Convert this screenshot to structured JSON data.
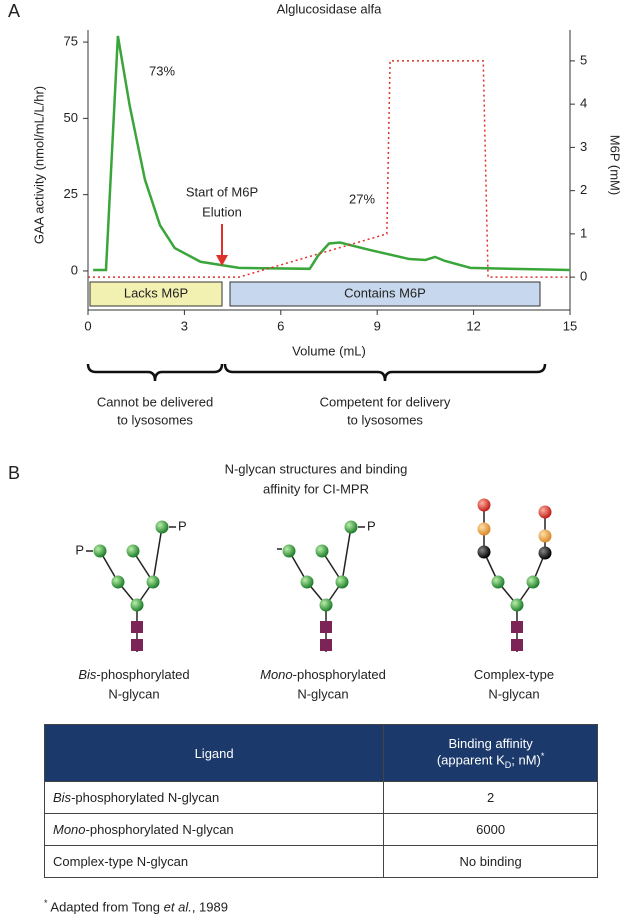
{
  "panel_a_label": "A",
  "chart_data": {
    "type": "line",
    "title": "Alglucosidase alfa",
    "x_label": "Volume (mL)",
    "y_label": "GAA activity (nmol/mL/L/hr)",
    "y2_label": "M6P (mM)",
    "xlim": [
      0,
      15
    ],
    "xticks": [
      0,
      3,
      6,
      9,
      12,
      15
    ],
    "ylim": [
      -12.8,
      80.6
    ],
    "yticks": [
      0,
      25,
      50,
      75
    ],
    "y2lim": [
      -0.76,
      5.83
    ],
    "y2ticks": [
      0,
      1,
      2,
      3,
      4,
      5
    ],
    "series": [
      {
        "color": "#3aa53a",
        "x": [
          0.16,
          0.56,
          0.93,
          1.3,
          1.77,
          2.24,
          2.7,
          3.5,
          4.7,
          6.9,
          7.16,
          7.5,
          7.84,
          8.8,
          10.0,
          10.5,
          10.8,
          11.1,
          11.9,
          15
        ],
        "values": [
          0.3,
          0.3,
          77,
          54,
          30,
          15,
          7.5,
          3,
          1,
          0.7,
          5,
          9,
          9.3,
          6.8,
          3.9,
          3.6,
          4.6,
          3.3,
          1,
          0.3
        ]
      },
      {
        "color": "#e0302a",
        "axis": "y2",
        "dashed": true,
        "x": [
          0,
          4.7,
          9.3,
          9.4,
          12.3,
          12.45,
          15
        ],
        "values": [
          0,
          0,
          1.0,
          5,
          5,
          0,
          0
        ]
      }
    ],
    "annotations": [
      {
        "text": "73%"
      },
      {
        "text": "27%"
      },
      {
        "text_lines": [
          "Start of M6P",
          "Elution"
        ]
      }
    ],
    "regions": [
      "Lacks M6P",
      "Contains M6P"
    ],
    "outcomes": [
      [
        "Cannot be delivered",
        "to lysosomes"
      ],
      [
        "Competent for delivery",
        "to lysosomes"
      ]
    ]
  },
  "panel_b": {
    "label": "B",
    "title_lines": [
      "N-glycan structures and binding",
      "affinity for CI-MPR"
    ],
    "phosphate": "P",
    "glycans": [
      {
        "italic": "Bis",
        "rest": "-phosphorylated",
        "line2": "N-glycan"
      },
      {
        "italic": "Mono",
        "rest": "-phosphorylated",
        "line2": "N-glycan"
      },
      {
        "rest": "Complex-type",
        "line2": "N-glycan"
      }
    ]
  },
  "table": {
    "header": {
      "ligand": "Ligand",
      "affinity_line1": "Binding affinity",
      "affinity_pre": "(apparent K",
      "affinity_sub": "D",
      "affinity_post": "; nM)",
      "affinity_mark": "*"
    },
    "rows": [
      {
        "ligand_italic": "Bis",
        "ligand_rest": "-phosphorylated N-glycan",
        "affinity": 2
      },
      {
        "ligand_italic": "Mono",
        "ligand_rest": "-phosphorylated N-glycan",
        "affinity": 6000
      },
      {
        "ligand_rest": "Complex-type N-glycan",
        "affinity": "No binding"
      }
    ]
  },
  "footnote": {
    "mark": "*",
    "before": " Adapted from Tong ",
    "italic": "et al.",
    "after": ", 1989"
  }
}
